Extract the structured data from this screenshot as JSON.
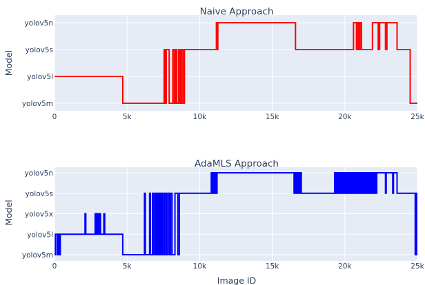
{
  "chart_data": [
    {
      "type": "line",
      "title": "Naive Approach",
      "xlabel": "",
      "ylabel": "Model",
      "xlim": [
        0,
        25000
      ],
      "x_ticks": [
        0,
        5000,
        10000,
        15000,
        20000,
        25000
      ],
      "x_tick_labels": [
        "0",
        "5k",
        "10k",
        "15k",
        "20k",
        "25k"
      ],
      "categories": [
        "yolov5m",
        "yolov5l",
        "yolov5s",
        "yolov5n"
      ],
      "grid": true,
      "series": [
        {
          "color": "#ff0000",
          "steps": [
            [
              0,
              "yolov5l"
            ],
            [
              4700,
              "yolov5m"
            ],
            [
              7550,
              "yolov5s"
            ],
            [
              7620,
              "yolov5m"
            ],
            [
              7700,
              "yolov5s"
            ],
            [
              7900,
              "yolov5m"
            ],
            [
              8150,
              "yolov5s"
            ],
            [
              8250,
              "yolov5m"
            ],
            [
              8350,
              "yolov5s"
            ],
            [
              8420,
              "yolov5m"
            ],
            [
              8550,
              "yolov5s"
            ],
            [
              8650,
              "yolov5m"
            ],
            [
              8750,
              "yolov5s"
            ],
            [
              8850,
              "yolov5m"
            ],
            [
              8950,
              "yolov5s"
            ],
            [
              11150,
              "yolov5n"
            ],
            [
              11200,
              "yolov5s"
            ],
            [
              11250,
              "yolov5n"
            ],
            [
              16600,
              "yolov5s"
            ],
            [
              20600,
              "yolov5n"
            ],
            [
              20800,
              "yolov5s"
            ],
            [
              20850,
              "yolov5n"
            ],
            [
              20950,
              "yolov5s"
            ],
            [
              21050,
              "yolov5n"
            ],
            [
              21150,
              "yolov5s"
            ],
            [
              21900,
              "yolov5n"
            ],
            [
              22300,
              "yolov5s"
            ],
            [
              22400,
              "yolov5n"
            ],
            [
              22800,
              "yolov5s"
            ],
            [
              22900,
              "yolov5n"
            ],
            [
              23600,
              "yolov5s"
            ],
            [
              24500,
              "yolov5m"
            ],
            [
              25000,
              "yolov5m"
            ]
          ]
        }
      ]
    },
    {
      "type": "line",
      "title": "AdaMLS Approach",
      "xlabel": "Image ID",
      "ylabel": "Model",
      "xlim": [
        0,
        25000
      ],
      "x_ticks": [
        0,
        5000,
        10000,
        15000,
        20000,
        25000
      ],
      "x_tick_labels": [
        "0",
        "5k",
        "10k",
        "15k",
        "20k",
        "25k"
      ],
      "categories": [
        "yolov5m",
        "yolov5l",
        "yolov5x",
        "yolov5s",
        "yolov5n"
      ],
      "grid": true,
      "series": [
        {
          "color": "#0000ff",
          "steps": [
            [
              0,
              "yolov5m"
            ],
            [
              60,
              "yolov5l"
            ],
            [
              180,
              "yolov5m"
            ],
            [
              260,
              "yolov5l"
            ],
            [
              330,
              "yolov5m"
            ],
            [
              400,
              "yolov5l"
            ],
            [
              2100,
              "yolov5x"
            ],
            [
              2160,
              "yolov5l"
            ],
            [
              2800,
              "yolov5x"
            ],
            [
              2870,
              "yolov5l"
            ],
            [
              2950,
              "yolov5x"
            ],
            [
              3030,
              "yolov5l"
            ],
            [
              3100,
              "yolov5x"
            ],
            [
              3170,
              "yolov5l"
            ],
            [
              3400,
              "yolov5x"
            ],
            [
              3460,
              "yolov5l"
            ],
            [
              4700,
              "yolov5m"
            ],
            [
              6200,
              "yolov5s"
            ],
            [
              6260,
              "yolov5m"
            ],
            [
              6550,
              "yolov5s"
            ],
            [
              6600,
              "yolov5m"
            ],
            [
              6750,
              "yolov5s"
            ],
            [
              6800,
              "yolov5m"
            ],
            [
              6900,
              "yolov5s"
            ],
            [
              6950,
              "yolov5m"
            ],
            [
              7000,
              "yolov5s"
            ],
            [
              7050,
              "yolov5m"
            ],
            [
              7100,
              "yolov5s"
            ],
            [
              7150,
              "yolov5m"
            ],
            [
              7200,
              "yolov5s"
            ],
            [
              7260,
              "yolov5m"
            ],
            [
              7320,
              "yolov5s"
            ],
            [
              7380,
              "yolov5m"
            ],
            [
              7450,
              "yolov5s"
            ],
            [
              7500,
              "yolov5m"
            ],
            [
              7600,
              "yolov5s"
            ],
            [
              7700,
              "yolov5m"
            ],
            [
              7800,
              "yolov5s"
            ],
            [
              7900,
              "yolov5m"
            ],
            [
              8000,
              "yolov5s"
            ],
            [
              8100,
              "yolov5m"
            ],
            [
              8300,
              "yolov5s"
            ],
            [
              8500,
              "yolov5m"
            ],
            [
              8600,
              "yolov5s"
            ],
            [
              10800,
              "yolov5n"
            ],
            [
              10850,
              "yolov5s"
            ],
            [
              10900,
              "yolov5n"
            ],
            [
              10950,
              "yolov5s"
            ],
            [
              11000,
              "yolov5n"
            ],
            [
              11050,
              "yolov5s"
            ],
            [
              11100,
              "yolov5n"
            ],
            [
              11150,
              "yolov5s"
            ],
            [
              11200,
              "yolov5n"
            ],
            [
              16500,
              "yolov5s"
            ],
            [
              16550,
              "yolov5n"
            ],
            [
              16600,
              "yolov5s"
            ],
            [
              16650,
              "yolov5n"
            ],
            [
              16700,
              "yolov5s"
            ],
            [
              16750,
              "yolov5n"
            ],
            [
              16800,
              "yolov5s"
            ],
            [
              16850,
              "yolov5n"
            ],
            [
              16900,
              "yolov5s"
            ],
            [
              16950,
              "yolov5n"
            ],
            [
              17000,
              "yolov5s"
            ],
            [
              19300,
              "yolov5n"
            ],
            [
              19350,
              "yolov5s"
            ],
            [
              19400,
              "yolov5n"
            ],
            [
              19450,
              "yolov5s"
            ],
            [
              19500,
              "yolov5n"
            ],
            [
              19550,
              "yolov5s"
            ],
            [
              19600,
              "yolov5n"
            ],
            [
              19650,
              "yolov5s"
            ],
            [
              19700,
              "yolov5n"
            ],
            [
              19750,
              "yolov5s"
            ],
            [
              19800,
              "yolov5n"
            ],
            [
              19850,
              "yolov5s"
            ],
            [
              19900,
              "yolov5n"
            ],
            [
              19950,
              "yolov5s"
            ],
            [
              20000,
              "yolov5n"
            ],
            [
              20050,
              "yolov5s"
            ],
            [
              20100,
              "yolov5n"
            ],
            [
              20150,
              "yolov5s"
            ],
            [
              20200,
              "yolov5n"
            ],
            [
              20250,
              "yolov5s"
            ],
            [
              20300,
              "yolov5n"
            ],
            [
              20350,
              "yolov5s"
            ],
            [
              20400,
              "yolov5n"
            ],
            [
              20450,
              "yolov5s"
            ],
            [
              20500,
              "yolov5n"
            ],
            [
              20550,
              "yolov5s"
            ],
            [
              20600,
              "yolov5n"
            ],
            [
              20650,
              "yolov5s"
            ],
            [
              20700,
              "yolov5n"
            ],
            [
              20750,
              "yolov5s"
            ],
            [
              20800,
              "yolov5n"
            ],
            [
              20850,
              "yolov5s"
            ],
            [
              20900,
              "yolov5n"
            ],
            [
              20950,
              "yolov5s"
            ],
            [
              21000,
              "yolov5n"
            ],
            [
              21050,
              "yolov5s"
            ],
            [
              21100,
              "yolov5n"
            ],
            [
              21150,
              "yolov5s"
            ],
            [
              21200,
              "yolov5n"
            ],
            [
              21250,
              "yolov5s"
            ],
            [
              21300,
              "yolov5n"
            ],
            [
              21350,
              "yolov5s"
            ],
            [
              21400,
              "yolov5n"
            ],
            [
              21450,
              "yolov5s"
            ],
            [
              21500,
              "yolov5n"
            ],
            [
              21550,
              "yolov5s"
            ],
            [
              21600,
              "yolov5n"
            ],
            [
              21650,
              "yolov5s"
            ],
            [
              21700,
              "yolov5n"
            ],
            [
              21750,
              "yolov5s"
            ],
            [
              21800,
              "yolov5n"
            ],
            [
              21850,
              "yolov5s"
            ],
            [
              21900,
              "yolov5n"
            ],
            [
              21950,
              "yolov5s"
            ],
            [
              22000,
              "yolov5n"
            ],
            [
              22050,
              "yolov5s"
            ],
            [
              22100,
              "yolov5n"
            ],
            [
              22150,
              "yolov5s"
            ],
            [
              22200,
              "yolov5n"
            ],
            [
              22800,
              "yolov5s"
            ],
            [
              22850,
              "yolov5n"
            ],
            [
              23300,
              "yolov5s"
            ],
            [
              23350,
              "yolov5n"
            ],
            [
              23600,
              "yolov5s"
            ],
            [
              24850,
              "yolov5m"
            ],
            [
              24900,
              "yolov5s"
            ],
            [
              24950,
              "yolov5m"
            ],
            [
              25000,
              "yolov5m"
            ]
          ]
        }
      ]
    }
  ]
}
